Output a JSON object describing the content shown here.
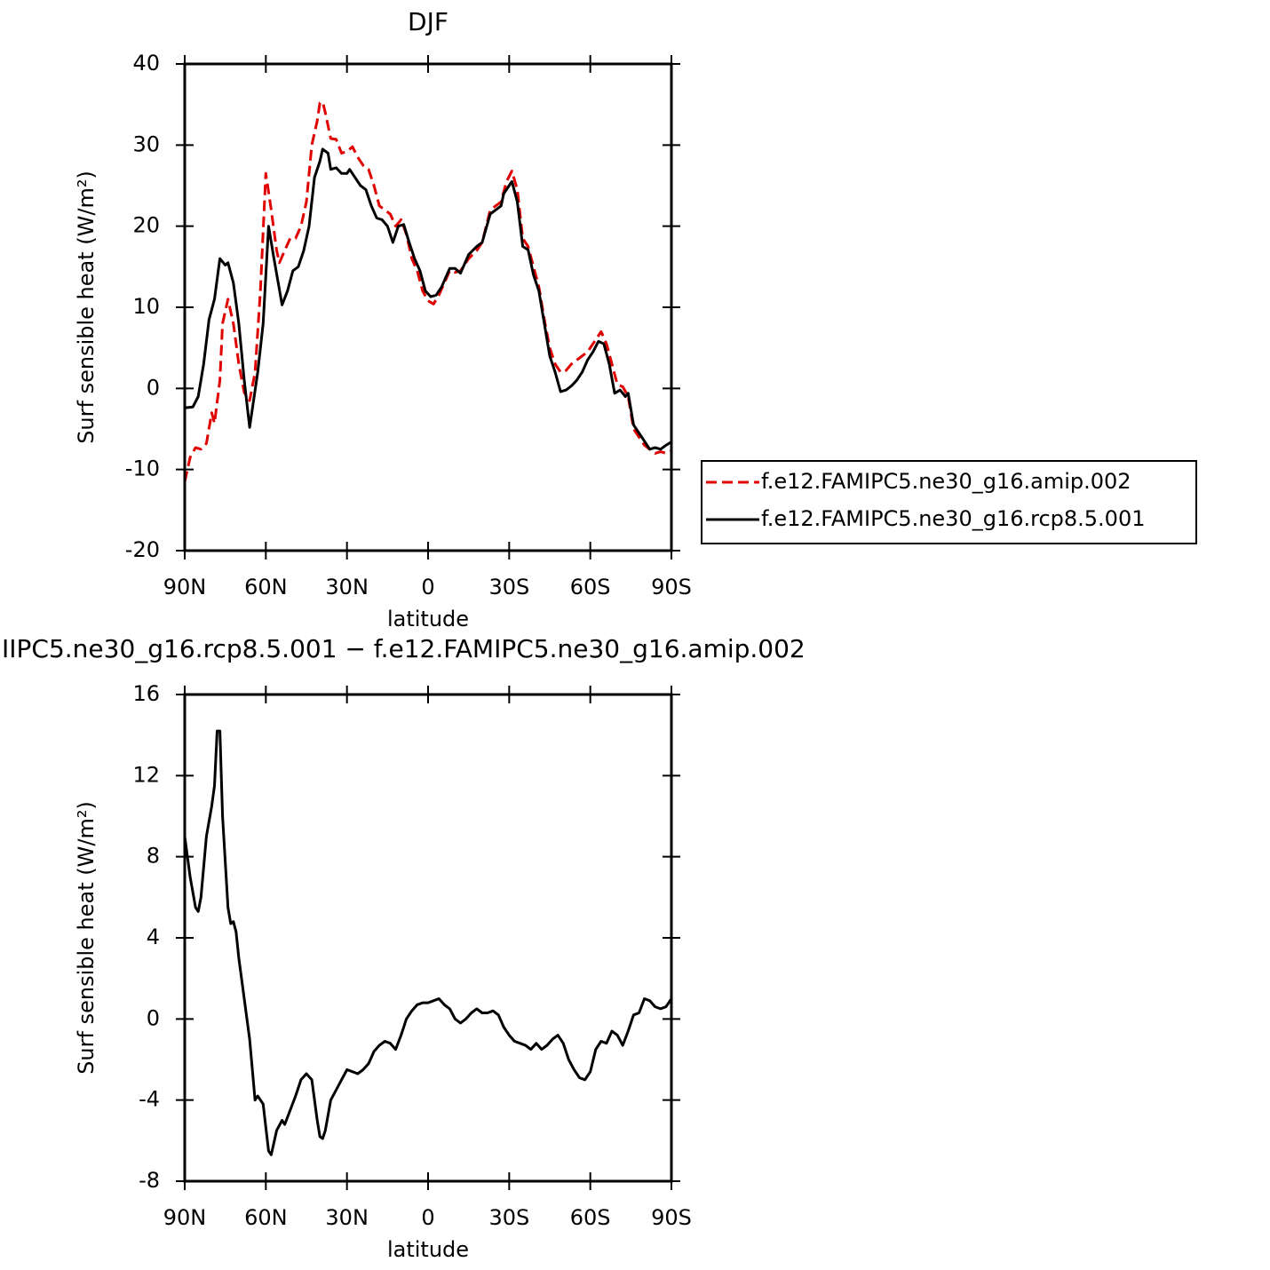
{
  "chart_data": [
    {
      "type": "line",
      "title": "DJF",
      "xlabel": "latitude",
      "ylabel": "Surf sensible heat (W/m²)",
      "xlim": [
        90,
        -90
      ],
      "ylim": [
        -20,
        40
      ],
      "xticks": [
        {
          "value": 90,
          "label": "90N"
        },
        {
          "value": 60,
          "label": "60N"
        },
        {
          "value": 30,
          "label": "30N"
        },
        0,
        {
          "value": -30,
          "label": "30S"
        },
        {
          "value": -60,
          "label": "60S"
        },
        {
          "value": -90,
          "label": "90S"
        }
      ],
      "yticks": [
        -20,
        -10,
        0,
        10,
        20,
        30,
        40
      ],
      "legend": "outside-right",
      "series": [
        {
          "name": "f.e12.FAMIPC5.ne30_g16.amip.002",
          "color": "#e00000",
          "linestyle": "dashed",
          "x": [
            90,
            88,
            86,
            84,
            82,
            80,
            79,
            77,
            76,
            74,
            72,
            70,
            68,
            66,
            64,
            62,
            60,
            58,
            56,
            55,
            53,
            51,
            49,
            47,
            45,
            43,
            41,
            40,
            39,
            38,
            36,
            34,
            32,
            30,
            28,
            26,
            24,
            22,
            20,
            18,
            16,
            14,
            12,
            10,
            8,
            6,
            4,
            2,
            0,
            -2,
            -4,
            -6,
            -8,
            -10,
            -12,
            -15,
            -18,
            -20,
            -23,
            -25,
            -27,
            -29,
            -31,
            -33,
            -35,
            -37,
            -39,
            -41,
            -43,
            -45,
            -47,
            -49,
            -51,
            -53,
            -55,
            -57,
            -59,
            -61,
            -63,
            -64,
            -66,
            -68,
            -70,
            -72,
            -74,
            -76,
            -78,
            -80,
            -82,
            -84,
            -86,
            -88,
            -90
          ],
          "values": [
            -11.5,
            -8.5,
            -7.3,
            -7.5,
            -6.8,
            -3,
            -4.3,
            1,
            8,
            11,
            8,
            3,
            -0.5,
            -1.5,
            2,
            12,
            26.5,
            22,
            17,
            15.5,
            17,
            18.5,
            18.5,
            20,
            23,
            30,
            33,
            35.2,
            35.3,
            34,
            30.8,
            30.7,
            29,
            29.2,
            29.8,
            28.5,
            27.5,
            27,
            25,
            22.5,
            22,
            21.5,
            20,
            20.8,
            19,
            16,
            14.5,
            12,
            10.8,
            10.4,
            11.5,
            13,
            14.5,
            14.3,
            14.5,
            16,
            17,
            18,
            22,
            22.5,
            23,
            25.5,
            26.8,
            24.5,
            18.5,
            17.5,
            15,
            12.5,
            8.5,
            5,
            3,
            2,
            2.2,
            3,
            3.5,
            4,
            4.5,
            5.5,
            6.5,
            7,
            5.5,
            3,
            0.5,
            0.2,
            -1,
            -5,
            -6,
            -7,
            -7.5,
            -8,
            -7.8,
            -8,
            -7.7
          ]
        },
        {
          "name": "f.e12.FAMIPC5.ne30_g16.rcp8.5.001",
          "color": "#000000",
          "linestyle": "solid",
          "x": [
            90,
            87,
            85,
            83,
            81,
            79,
            77,
            75,
            74,
            72,
            70,
            68,
            66,
            63,
            61,
            59,
            57,
            54,
            52,
            50,
            48,
            46,
            44,
            42,
            40,
            39,
            37,
            36,
            34,
            32,
            30,
            29,
            27,
            25,
            23,
            21,
            19,
            17,
            15,
            13,
            11,
            9,
            7,
            5,
            3,
            1,
            -1,
            -3,
            -5,
            -8,
            -10,
            -12,
            -15,
            -18,
            -20,
            -23,
            -25,
            -27,
            -28,
            -30,
            -31,
            -33,
            -35,
            -37,
            -39,
            -41,
            -43,
            -45,
            -47,
            -49,
            -51,
            -53,
            -55,
            -57,
            -59,
            -61,
            -63,
            -65,
            -67,
            -69,
            -71,
            -73,
            -74,
            -76,
            -78,
            -80,
            -82,
            -84,
            -86,
            -88,
            -90
          ],
          "values": [
            -2.4,
            -2.3,
            -1,
            3,
            8.5,
            11,
            16,
            15.2,
            15.5,
            13,
            8,
            1,
            -4.8,
            2,
            8,
            20,
            16,
            10.3,
            12,
            14.5,
            15,
            17,
            20,
            26,
            28,
            29.5,
            29,
            27,
            27.2,
            26.5,
            26.5,
            27,
            26,
            25,
            24.5,
            22.5,
            21,
            20.8,
            20,
            18,
            20,
            20.2,
            18,
            16,
            14.5,
            12,
            11.3,
            11.5,
            12.5,
            14.8,
            14.8,
            14.2,
            16.5,
            17.5,
            18,
            21.5,
            22,
            22.5,
            24,
            25,
            25.5,
            23,
            17.5,
            17.1,
            14,
            12,
            8,
            4,
            2,
            -0.4,
            -0.2,
            0.3,
            1,
            2,
            3.5,
            4.5,
            5.8,
            5.5,
            3,
            -0.6,
            -0.2,
            -1,
            -0.6,
            -4.5,
            -5.5,
            -6.5,
            -7.5,
            -7.3,
            -7.5,
            -7,
            -6.6
          ]
        }
      ]
    },
    {
      "type": "line",
      "title": "IIPC5.ne30_g16.rcp8.5.001 − f.e12.FAMIPC5.ne30_g16.amip.002",
      "xlabel": "latitude",
      "ylabel": "Surf sensible heat (W/m²)",
      "xlim": [
        90,
        -90
      ],
      "ylim": [
        -8,
        16
      ],
      "xticks": [
        {
          "value": 90,
          "label": "90N"
        },
        {
          "value": 60,
          "label": "60N"
        },
        {
          "value": 30,
          "label": "30N"
        },
        0,
        {
          "value": -30,
          "label": "30S"
        },
        {
          "value": -60,
          "label": "60S"
        },
        {
          "value": -90,
          "label": "90S"
        }
      ],
      "yticks": [
        -8,
        -4,
        0,
        4,
        8,
        12,
        16
      ],
      "series": [
        {
          "color": "#000000",
          "linestyle": "solid",
          "x": [
            90,
            88,
            86,
            85,
            84,
            82,
            80,
            79,
            78,
            77,
            76,
            74,
            73,
            72,
            71,
            70,
            68,
            66,
            64,
            63,
            61,
            59,
            58,
            56,
            54,
            53,
            51,
            49,
            47,
            45,
            43,
            41,
            40,
            39,
            38,
            36,
            34,
            32,
            30,
            28,
            26,
            24,
            22,
            20,
            18,
            16,
            14,
            12,
            10,
            8,
            6,
            4,
            2,
            0,
            -2,
            -4,
            -6,
            -8,
            -10,
            -12,
            -14,
            -16,
            -18,
            -20,
            -22,
            -24,
            -26,
            -28,
            -30,
            -32,
            -34,
            -36,
            -38,
            -40,
            -42,
            -44,
            -46,
            -48,
            -50,
            -52,
            -54,
            -56,
            -58,
            -60,
            -62,
            -64,
            -66,
            -68,
            -70,
            -72,
            -74,
            -76,
            -78,
            -80,
            -82,
            -84,
            -86,
            -88,
            -90
          ],
          "values": [
            9,
            7,
            5.5,
            5.3,
            6,
            9,
            10.5,
            11.5,
            14.2,
            14.2,
            10,
            5.5,
            4.7,
            4.8,
            4.3,
            3,
            1,
            -1,
            -4,
            -3.8,
            -4.2,
            -6.5,
            -6.7,
            -5.5,
            -5,
            -5.2,
            -4.5,
            -3.8,
            -3,
            -2.7,
            -3,
            -5,
            -5.8,
            -5.9,
            -5.5,
            -4,
            -3.5,
            -3,
            -2.5,
            -2.6,
            -2.7,
            -2.5,
            -2.2,
            -1.6,
            -1.3,
            -1.1,
            -1.2,
            -1.5,
            -0.8,
            0,
            0.4,
            0.7,
            0.8,
            0.8,
            0.9,
            1,
            0.7,
            0.5,
            0,
            -0.2,
            0,
            0.3,
            0.5,
            0.3,
            0.3,
            0.4,
            0.2,
            -0.4,
            -0.8,
            -1.1,
            -1.2,
            -1.3,
            -1.5,
            -1.2,
            -1.5,
            -1.3,
            -1,
            -0.8,
            -1.2,
            -2,
            -2.5,
            -2.9,
            -3,
            -2.6,
            -1.5,
            -1.1,
            -1.2,
            -0.6,
            -0.8,
            -1.3,
            -0.6,
            0.2,
            0.3,
            1,
            0.9,
            0.6,
            0.5,
            0.6,
            1
          ]
        }
      ]
    }
  ]
}
